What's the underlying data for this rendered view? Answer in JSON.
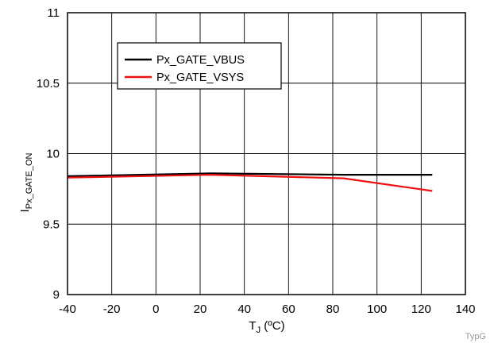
{
  "chart_data": {
    "type": "line",
    "title": "",
    "xlabel": "T",
    "xlabel_sub": "J",
    "xlabel_unit": " (ºC)",
    "ylabel": "I",
    "ylabel_sub": "Px_GATE_ON",
    "xlim": [
      -40,
      140
    ],
    "ylim": [
      9,
      11
    ],
    "x_ticks": [
      -40,
      -20,
      0,
      20,
      40,
      60,
      80,
      100,
      120,
      140
    ],
    "y_ticks": [
      9,
      9.5,
      10,
      10.5,
      11
    ],
    "x_tick_labels": [
      "-40",
      "-20",
      "0",
      "20",
      "40",
      "60",
      "80",
      "100",
      "120",
      "140"
    ],
    "y_tick_labels": [
      "9",
      "9.5",
      "10",
      "10.5",
      "11"
    ],
    "grid": true,
    "legend_position": "top-left",
    "series": [
      {
        "name": "Px_GATE_VBUS",
        "color": "#000000",
        "x": [
          -40,
          25,
          85,
          125
        ],
        "y": [
          9.84,
          9.86,
          9.85,
          9.85
        ]
      },
      {
        "name": "Px_GATE_VSYS",
        "color": "#ee1111",
        "x": [
          -40,
          25,
          85,
          125
        ],
        "y": [
          9.83,
          9.85,
          9.825,
          9.735
        ]
      }
    ]
  },
  "figure_tag": "TypG"
}
